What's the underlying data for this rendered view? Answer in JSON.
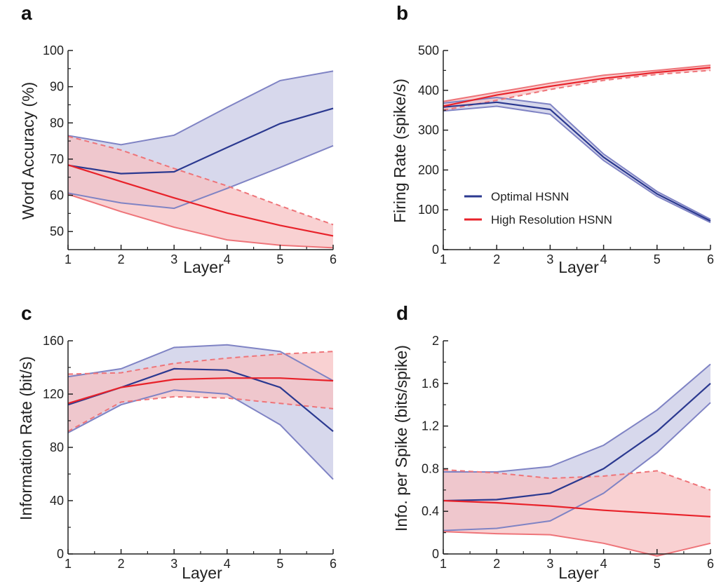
{
  "colors": {
    "optimal": "#2b3990",
    "optimal_edge": "#7f83c4",
    "optimal_fill": "#c9cbe6",
    "highres": "#e8222a",
    "highres_edge": "#ee7479",
    "highres_fill": "#f7c2c3",
    "axis": "#222222"
  },
  "chart_data": [
    {
      "panel": "a",
      "type": "line",
      "xlabel": "Layer",
      "ylabel": "Word Accuracy (%)",
      "xlim": [
        1,
        6
      ],
      "ylim": [
        45,
        100
      ],
      "x": [
        1,
        2,
        3,
        4,
        5,
        6
      ],
      "x_ticks": [
        "1",
        "2",
        "3",
        "4",
        "5",
        "6"
      ],
      "y_ticks": [
        "50",
        "60",
        "70",
        "80",
        "90",
        "100"
      ],
      "y_tick_values": [
        50,
        60,
        70,
        80,
        90,
        100
      ],
      "series": [
        {
          "name": "Optimal HSNN",
          "mean": [
            68.3,
            66.0,
            66.5,
            73.2,
            79.8,
            84.0
          ],
          "lower": [
            60.6,
            57.9,
            56.4,
            61.9,
            67.7,
            73.7
          ],
          "upper": [
            76.5,
            74.0,
            76.6,
            84.3,
            91.7,
            94.3
          ]
        },
        {
          "name": "High Resolution HSNN",
          "mean": [
            68.4,
            63.8,
            59.3,
            55.1,
            51.7,
            48.8
          ],
          "lower": [
            60.3,
            55.5,
            51.2,
            47.7,
            46.2,
            45.5
          ],
          "upper": [
            76.3,
            72.5,
            67.4,
            62.6,
            57.1,
            51.9
          ],
          "upper_dashed": true
        }
      ]
    },
    {
      "panel": "b",
      "type": "line",
      "xlabel": "Layer",
      "ylabel": "Firing Rate (spike/s)",
      "xlim": [
        1,
        6
      ],
      "ylim": [
        0,
        500
      ],
      "x": [
        1,
        2,
        3,
        4,
        5,
        6
      ],
      "x_ticks": [
        "1",
        "2",
        "3",
        "4",
        "5",
        "6"
      ],
      "y_ticks": [
        "0",
        "100",
        "200",
        "300",
        "400",
        "500"
      ],
      "y_tick_values": [
        0,
        100,
        200,
        300,
        400,
        500
      ],
      "legend": [
        "Optimal HSNN",
        "High Resolution HSNN"
      ],
      "series": [
        {
          "name": "Optimal HSNN",
          "mean": [
            358,
            370,
            352,
            232,
            140,
            72
          ],
          "lower": [
            348,
            360,
            340,
            224,
            134,
            68
          ],
          "upper": [
            368,
            382,
            365,
            240,
            146,
            76
          ]
        },
        {
          "name": "High Resolution HSNN",
          "mean": [
            360,
            388,
            410,
            430,
            445,
            457
          ],
          "lower": [
            350,
            375,
            402,
            425,
            440,
            450
          ],
          "upper": [
            372,
            395,
            418,
            438,
            450,
            463
          ],
          "lower_dashed": true
        }
      ]
    },
    {
      "panel": "c",
      "type": "line",
      "xlabel": "Layer",
      "ylabel": "Information Rate (bit/s)",
      "xlim": [
        1,
        6
      ],
      "ylim": [
        0,
        160
      ],
      "x": [
        1,
        2,
        3,
        4,
        5,
        6
      ],
      "x_ticks": [
        "1",
        "2",
        "3",
        "4",
        "5",
        "6"
      ],
      "y_ticks": [
        "0",
        "40",
        "80",
        "120",
        "160"
      ],
      "y_tick_values": [
        0,
        40,
        80,
        120,
        160
      ],
      "series": [
        {
          "name": "Optimal HSNN",
          "mean": [
            112,
            125,
            139,
            138,
            125,
            92
          ],
          "lower": [
            91,
            112,
            123,
            120,
            97,
            56
          ],
          "upper": [
            133,
            139,
            155,
            157,
            152,
            130
          ]
        },
        {
          "name": "High Resolution HSNN",
          "mean": [
            113,
            125,
            131,
            132,
            132,
            130
          ],
          "lower": [
            92,
            114,
            118,
            117,
            113,
            109
          ],
          "upper": [
            135,
            136,
            143,
            147,
            150,
            152
          ],
          "upper_dashed": true,
          "lower_dashed": true
        }
      ]
    },
    {
      "panel": "d",
      "type": "line",
      "xlabel": "Layer",
      "ylabel": "Info. per Spike (bits/spike)",
      "xlim": [
        1,
        6
      ],
      "ylim": [
        0,
        2
      ],
      "x": [
        1,
        2,
        3,
        4,
        5,
        6
      ],
      "x_ticks": [
        "1",
        "2",
        "3",
        "4",
        "5",
        "6"
      ],
      "y_ticks": [
        "0",
        "0.4",
        "0.8",
        "1.2",
        "1.6",
        "2"
      ],
      "y_tick_values": [
        0,
        0.4,
        0.8,
        1.2,
        1.6,
        2.0
      ],
      "series": [
        {
          "name": "Optimal HSNN",
          "mean": [
            0.5,
            0.51,
            0.57,
            0.8,
            1.15,
            1.6
          ],
          "lower": [
            0.22,
            0.24,
            0.31,
            0.57,
            0.95,
            1.42
          ],
          "upper": [
            0.77,
            0.77,
            0.82,
            1.02,
            1.35,
            1.78
          ]
        },
        {
          "name": "High Resolution HSNN",
          "mean": [
            0.5,
            0.48,
            0.45,
            0.41,
            0.38,
            0.35
          ],
          "lower": [
            0.21,
            0.19,
            0.18,
            0.1,
            -0.02,
            0.1
          ],
          "upper": [
            0.79,
            0.76,
            0.71,
            0.73,
            0.78,
            0.6
          ],
          "upper_dashed": true
        }
      ]
    }
  ]
}
